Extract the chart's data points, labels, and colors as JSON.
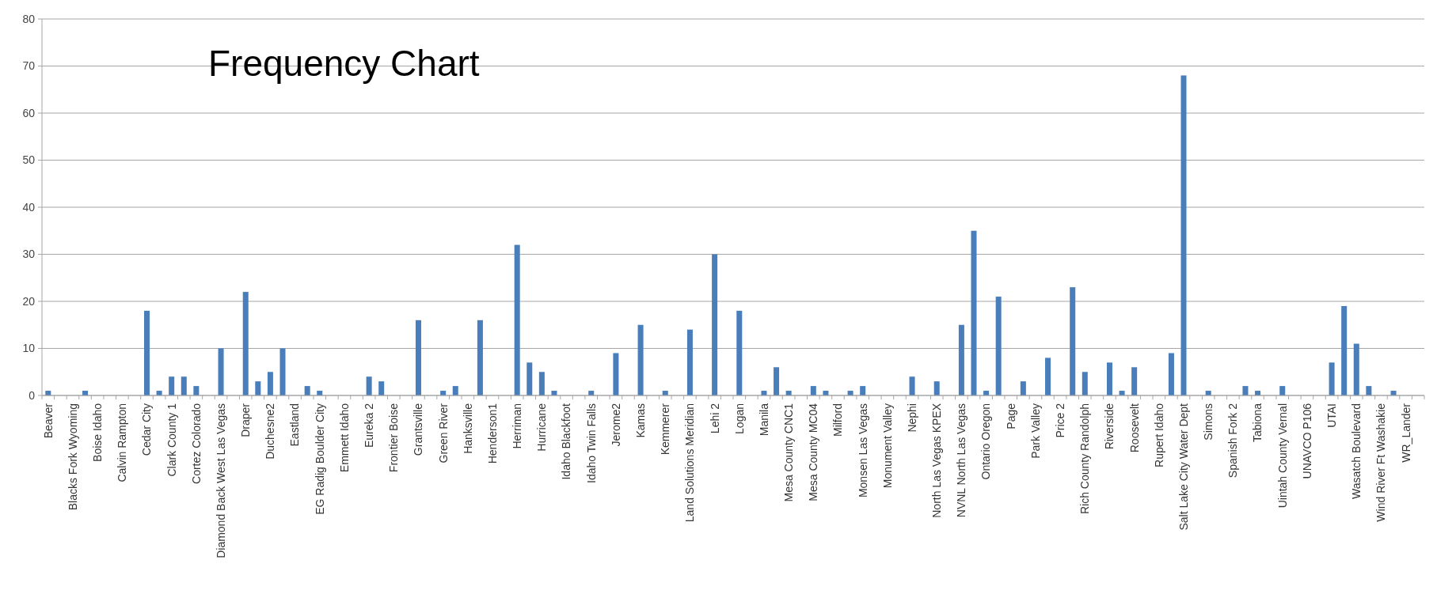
{
  "chart_data": {
    "type": "bar",
    "title": "Frequency Chart",
    "categories": [
      "Beaver",
      null,
      "Blacks Fork Wyoming",
      null,
      "Boise Idaho",
      null,
      "Calvin Rampton",
      null,
      "Cedar City",
      null,
      "Clark County 1",
      null,
      "Cortez Colorado",
      null,
      "Diamond Back West Las Vegas",
      null,
      "Draper",
      null,
      "Duchesne2",
      null,
      "Eastland",
      null,
      "EG Radig Boulder City",
      null,
      "Emmett Idaho",
      null,
      "Eureka 2",
      null,
      "Frontier Boise",
      null,
      "Grantsville",
      null,
      "Green River",
      null,
      "Hanksville",
      null,
      "Henderson1",
      null,
      "Herriman",
      null,
      "Hurricane",
      null,
      "Idaho Blackfoot",
      null,
      "Idaho Twin Falls",
      null,
      "Jerome2",
      null,
      "Kamas",
      null,
      "Kemmerer",
      null,
      "Land Solutions Meridian",
      null,
      "Lehi 2",
      null,
      "Logan",
      null,
      "Manila",
      null,
      "Mesa County CNC1",
      null,
      "Mesa County MC04",
      null,
      "Milford",
      null,
      "Monsen Las Vegas",
      null,
      "Monument Valley",
      null,
      "Nephi",
      null,
      "North Las Vegas KPEX",
      null,
      "NVNL North Las Vegas",
      null,
      "Ontario Oregon",
      null,
      "Page",
      null,
      "Park Valley",
      null,
      "Price 2",
      null,
      "Rich County Randolph",
      null,
      "Riverside",
      null,
      "Roosevelt",
      null,
      "Rupert Idaho",
      null,
      "Salt Lake City Water Dept",
      null,
      "Simons",
      null,
      "Spanish Fork 2",
      null,
      "Tabiona",
      null,
      "Uintah County Vernal",
      null,
      "UNAVCO P106",
      null,
      "UTAI",
      null,
      "Wasatch Boulevard",
      null,
      "Wind River Ft Washakie",
      null,
      "WR_Lander",
      null
    ],
    "values": [
      1,
      0,
      0,
      1,
      0,
      0,
      0,
      0,
      18,
      1,
      4,
      4,
      2,
      0,
      10,
      0,
      22,
      3,
      5,
      10,
      0,
      2,
      1,
      0,
      0,
      0,
      4,
      3,
      0,
      0,
      16,
      0,
      1,
      2,
      0,
      16,
      0,
      0,
      32,
      7,
      5,
      1,
      0,
      0,
      1,
      0,
      9,
      0,
      15,
      0,
      1,
      0,
      14,
      0,
      30,
      0,
      18,
      0,
      1,
      6,
      1,
      0,
      2,
      1,
      0,
      1,
      2,
      0,
      0,
      0,
      4,
      0,
      3,
      0,
      15,
      35,
      1,
      21,
      0,
      3,
      0,
      8,
      0,
      23,
      5,
      0,
      7,
      1,
      6,
      0,
      0,
      9,
      68,
      0,
      1,
      0,
      0,
      2,
      1,
      0,
      2,
      0,
      0,
      0,
      7,
      19,
      11,
      2,
      0,
      1,
      0,
      0
    ],
    "color": "#4a7ebb",
    "ylim": [
      0,
      80
    ],
    "yticks": [
      0,
      10,
      20,
      30,
      40,
      50,
      60,
      70,
      80
    ],
    "grid": "y"
  }
}
